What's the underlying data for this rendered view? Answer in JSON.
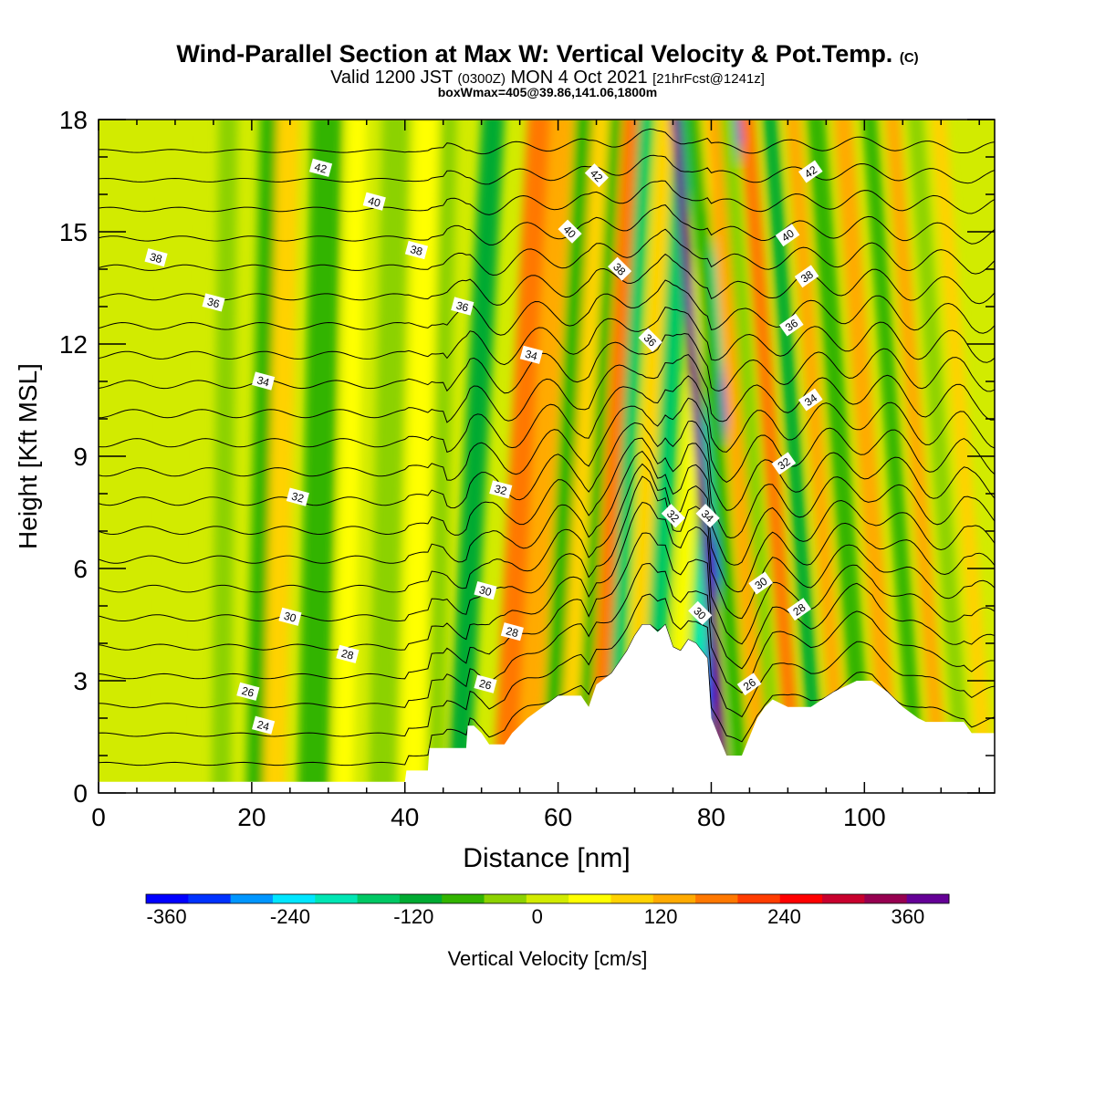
{
  "title": {
    "main": "Wind-Parallel Section at Max W: Vertical Velocity & Pot.Temp.",
    "copyright": "(C)",
    "valid_prefix": "Valid 1200 JST",
    "utc": "(0300Z)",
    "valid_suffix": "MON 4 Oct 2021",
    "forecast": "[21hrFcst@1241z]",
    "box": "boxWmax=405@39.86,141.06,1800m"
  },
  "chart_data": {
    "type": "heatmap",
    "xlabel": "Distance [nm]",
    "ylabel": "Height [Kft MSL]",
    "xlim": [
      0,
      117
    ],
    "ylim": [
      0,
      18
    ],
    "xticks": [
      0,
      20,
      40,
      60,
      80,
      100
    ],
    "yticks": [
      0,
      3,
      6,
      9,
      12,
      15,
      18
    ],
    "colorbar": {
      "label": "Vertical Velocity [cm/s]",
      "tick_values": [
        -360,
        -240,
        -120,
        0,
        120,
        240,
        360
      ],
      "tick_labels": [
        "-360",
        "-240",
        "-120",
        "0",
        "120",
        "240",
        "360"
      ],
      "colors": [
        "#0000ff",
        "#0032ff",
        "#0096ff",
        "#00e6ff",
        "#00e6b4",
        "#00c864",
        "#00aa32",
        "#32b400",
        "#8cd200",
        "#d2eb00",
        "#ffff00",
        "#ffd200",
        "#ffaa00",
        "#ff7800",
        "#ff3c00",
        "#ff0000",
        "#c8002d",
        "#960050",
        "#640096"
      ],
      "range": [
        -380,
        400
      ],
      "step": 40
    },
    "terrain_height_kft": [
      [
        0,
        0.3
      ],
      [
        40,
        0.3
      ],
      [
        40.2,
        0.6
      ],
      [
        43,
        0.6
      ],
      [
        43.2,
        1.2
      ],
      [
        48,
        1.2
      ],
      [
        48.2,
        1.8
      ],
      [
        49,
        1.8
      ],
      [
        50,
        1.6
      ],
      [
        51,
        1.3
      ],
      [
        53,
        1.3
      ],
      [
        54,
        1.6
      ],
      [
        56,
        2.0
      ],
      [
        58,
        2.3
      ],
      [
        60,
        2.6
      ],
      [
        63,
        2.6
      ],
      [
        64,
        2.3
      ],
      [
        65,
        2.9
      ],
      [
        67,
        3.2
      ],
      [
        69,
        3.8
      ],
      [
        70,
        4.2
      ],
      [
        71,
        4.5
      ],
      [
        72,
        4.5
      ],
      [
        73,
        4.3
      ],
      [
        74,
        4.5
      ],
      [
        75,
        3.9
      ],
      [
        76,
        3.8
      ],
      [
        77,
        4.1
      ],
      [
        78,
        4.0
      ],
      [
        79.5,
        3.6
      ],
      [
        80,
        2.0
      ],
      [
        81,
        1.5
      ],
      [
        82,
        1.0
      ],
      [
        84,
        1.0
      ],
      [
        85,
        1.5
      ],
      [
        86,
        2.0
      ],
      [
        87,
        2.3
      ],
      [
        88,
        2.5
      ],
      [
        89,
        2.4
      ],
      [
        90,
        2.3
      ],
      [
        93,
        2.3
      ],
      [
        96,
        2.7
      ],
      [
        99,
        3.0
      ],
      [
        101,
        3.0
      ],
      [
        103,
        2.7
      ],
      [
        105,
        2.3
      ],
      [
        107,
        2.0
      ],
      [
        108,
        1.9
      ],
      [
        113,
        1.9
      ],
      [
        114,
        1.6
      ],
      [
        117,
        1.6
      ]
    ],
    "vertical_velocity_bands": [
      {
        "x": 9,
        "width": 2,
        "w": -20
      },
      {
        "x": 16,
        "width": 2.5,
        "w": -40
      },
      {
        "x": 20.5,
        "width": 2.5,
        "w": -100
      },
      {
        "x": 23,
        "width": 3,
        "w": 80
      },
      {
        "x": 28,
        "width": 4,
        "w": -80
      },
      {
        "x": 32,
        "width": 2.5,
        "w": 40
      },
      {
        "x": 37,
        "width": 3.5,
        "w": -40
      },
      {
        "x": 41,
        "width": 3,
        "w": 40
      },
      {
        "x": 44,
        "width": 2,
        "w": -60
      },
      {
        "x": 47,
        "width": 3,
        "w": -120
      },
      {
        "x": 53,
        "width": 3,
        "w": 160
      },
      {
        "x": 56,
        "width": 3,
        "w": 120
      },
      {
        "x": 59,
        "width": 2.5,
        "w": -80
      },
      {
        "x": 61,
        "width": 2,
        "w": 80
      },
      {
        "x": 63,
        "width": 1.5,
        "w": -80
      },
      {
        "x": 65,
        "width": 2,
        "w": 160
      },
      {
        "x": 67,
        "width": 2,
        "w": -160
      },
      {
        "x": 69.5,
        "width": 2,
        "w": 80
      },
      {
        "x": 72,
        "width": 2.5,
        "w": -160
      },
      {
        "x": 75,
        "width": 1.5,
        "w": 40
      },
      {
        "x": 77.5,
        "width": 2,
        "w": -200
      },
      {
        "x": 79,
        "width": 1,
        "w": -320
      },
      {
        "x": 81.7,
        "width": 1.3,
        "w": 360
      },
      {
        "x": 84,
        "width": 2,
        "w": -100
      },
      {
        "x": 86.5,
        "width": 2,
        "w": 120
      },
      {
        "x": 88.5,
        "width": 2,
        "w": -60
      },
      {
        "x": 91,
        "width": 2,
        "w": 160
      },
      {
        "x": 94,
        "width": 2,
        "w": -140
      },
      {
        "x": 97,
        "width": 2,
        "w": 120
      },
      {
        "x": 100,
        "width": 2.5,
        "w": -100
      },
      {
        "x": 103.5,
        "width": 2.5,
        "w": 120
      },
      {
        "x": 107,
        "width": 2,
        "w": -80
      },
      {
        "x": 110,
        "width": 2,
        "w": 120
      },
      {
        "x": 113,
        "width": 2,
        "w": -60
      },
      {
        "x": 116,
        "width": 2,
        "w": 60
      }
    ],
    "isentropes_potential_temperature": [
      22,
      23,
      24,
      25,
      26,
      27,
      28,
      29,
      30,
      31,
      32,
      33,
      34,
      35,
      36,
      37,
      38,
      39,
      40,
      41,
      42,
      43
    ],
    "isentrope_labels": [
      {
        "value": "42",
        "x": 29,
        "y": 16.7
      },
      {
        "value": "40",
        "x": 36,
        "y": 15.8
      },
      {
        "value": "38",
        "x": 7.5,
        "y": 14.3
      },
      {
        "value": "36",
        "x": 15,
        "y": 13.1
      },
      {
        "value": "34",
        "x": 21.5,
        "y": 11.0
      },
      {
        "value": "32",
        "x": 26,
        "y": 7.9
      },
      {
        "value": "30",
        "x": 25,
        "y": 4.7
      },
      {
        "value": "28",
        "x": 32.5,
        "y": 3.7
      },
      {
        "value": "26",
        "x": 19.5,
        "y": 2.7
      },
      {
        "value": "24",
        "x": 21.5,
        "y": 1.8
      },
      {
        "value": "38",
        "x": 41.5,
        "y": 14.5
      },
      {
        "value": "36",
        "x": 47.5,
        "y": 13.0
      },
      {
        "value": "34",
        "x": 56.5,
        "y": 11.7
      },
      {
        "value": "32",
        "x": 52.5,
        "y": 8.1
      },
      {
        "value": "30",
        "x": 50.5,
        "y": 5.4
      },
      {
        "value": "28",
        "x": 54,
        "y": 4.3
      },
      {
        "value": "26",
        "x": 50.5,
        "y": 2.9
      },
      {
        "value": "42",
        "x": 65,
        "y": 16.5
      },
      {
        "value": "40",
        "x": 61.5,
        "y": 15.0
      },
      {
        "value": "38",
        "x": 68,
        "y": 14.0
      },
      {
        "value": "36",
        "x": 72,
        "y": 12.1
      },
      {
        "value": "32",
        "x": 75,
        "y": 7.4
      },
      {
        "value": "34",
        "x": 79.5,
        "y": 7.4
      },
      {
        "value": "30",
        "x": 78.5,
        "y": 4.8
      },
      {
        "value": "42",
        "x": 93,
        "y": 16.6
      },
      {
        "value": "40",
        "x": 90,
        "y": 14.9
      },
      {
        "value": "38",
        "x": 92.5,
        "y": 13.8
      },
      {
        "value": "36",
        "x": 90.5,
        "y": 12.5
      },
      {
        "value": "34",
        "x": 93,
        "y": 10.5
      },
      {
        "value": "32",
        "x": 89.5,
        "y": 8.8
      },
      {
        "value": "30",
        "x": 86.5,
        "y": 5.6
      },
      {
        "value": "28",
        "x": 91.5,
        "y": 4.9
      },
      {
        "value": "26",
        "x": 85,
        "y": 2.9
      }
    ]
  }
}
